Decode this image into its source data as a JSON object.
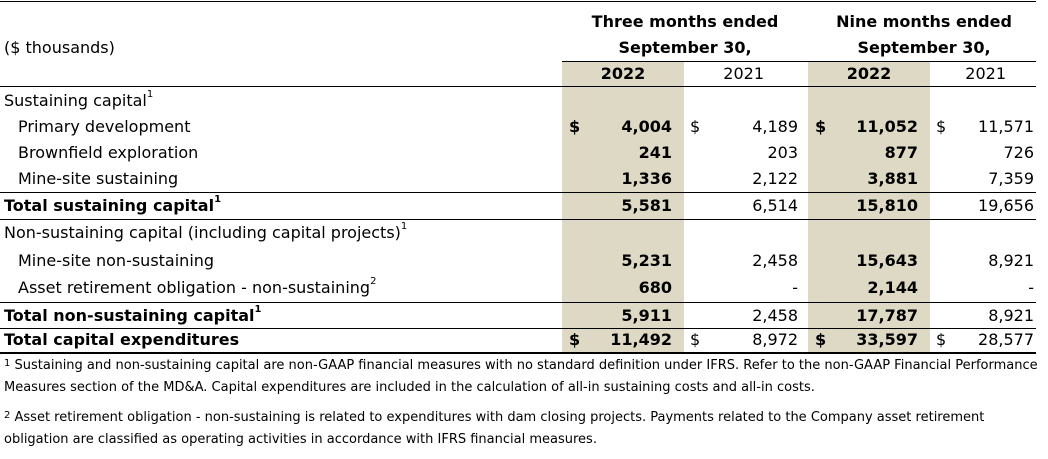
{
  "header": {
    "units_label": "($ thousands)",
    "three_months_line1": "Three months ended",
    "three_months_line2": "September 30,",
    "nine_months_line1": "Nine months ended",
    "nine_months_line2": "September 30,",
    "year_2022": "2022",
    "year_2021": "2021"
  },
  "rows": [
    {
      "label": "Sustaining capital",
      "sup": "1",
      "style": "section"
    },
    {
      "label": "Primary development",
      "style": "indent",
      "q22_cur": "$",
      "q22": "4,004",
      "q21_cur": "$",
      "q21": "4,189",
      "n22_cur": "$",
      "n22": "11,052",
      "n21_cur": "$",
      "n21": "11,571"
    },
    {
      "label": "Brownfield exploration",
      "style": "indent",
      "q22": "241",
      "q21": "203",
      "n22": "877",
      "n21": "726"
    },
    {
      "label": "Mine-site sustaining",
      "style": "indent",
      "q22": "1,336",
      "q21": "2,122",
      "n22": "3,881",
      "n21": "7,359"
    },
    {
      "label": "Total sustaining capital",
      "sup": "1",
      "style": "total",
      "q22": "5,581",
      "q21": "6,514",
      "n22": "15,810",
      "n21": "19,656"
    },
    {
      "label": "Non-sustaining capital (including capital projects)",
      "sup": "1",
      "style": "section"
    },
    {
      "label": "Mine-site non-sustaining",
      "style": "indent",
      "q22": "5,231",
      "q21": "2,458",
      "n22": "15,643",
      "n21": "8,921"
    },
    {
      "label": "Asset retirement obligation - non-sustaining",
      "sup": "2",
      "style": "indent",
      "q22": "680",
      "q21": "-",
      "n22": "2,144",
      "n21": "-"
    },
    {
      "label": "Total non-sustaining capital",
      "sup": "1",
      "style": "total",
      "q22": "5,911",
      "q21": "2,458",
      "n22": "17,787",
      "n21": "8,921"
    },
    {
      "label": "Total capital expenditures",
      "style": "total",
      "q22_cur": "$",
      "q22": "11,492",
      "q21_cur": "$",
      "q21": "8,972",
      "n22_cur": "$",
      "n22": "33,597",
      "n21_cur": "$",
      "n21": "28,577"
    }
  ],
  "footnotes": {
    "fn1_mark": "1",
    "fn1_text": "Sustaining and non-sustaining capital are non-GAAP financial measures with no standard definition under IFRS. Refer to the non-GAAP Financial Performance Measures section of the MD&A. Capital expenditures are included in the calculation of all-in sustaining costs and all-in costs.",
    "fn2_mark": "2",
    "fn2_text": "Asset retirement obligation - non-sustaining is related to expenditures with dam closing projects. Payments related to the Company asset retirement obligation are classified as operating activities in accordance with IFRS financial measures."
  },
  "colors": {
    "highlight": "#ddd9c4",
    "rule": "#000000"
  }
}
